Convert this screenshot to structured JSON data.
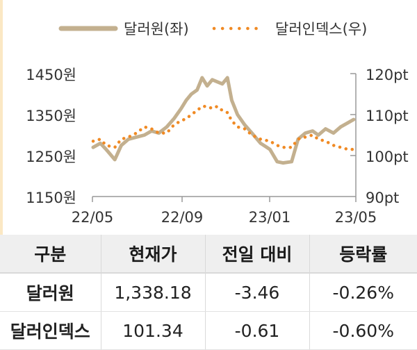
{
  "chart_data": {
    "type": "line",
    "x_ticks": [
      "22/05",
      "22/09",
      "23/01",
      "23/05"
    ],
    "y_left": {
      "ticks": [
        "1450원",
        "1350원",
        "1250원",
        "1150원"
      ],
      "lim": [
        1150,
        1450
      ]
    },
    "y_right": {
      "ticks": [
        "120pt",
        "110pt",
        "100pt",
        "90pt"
      ],
      "lim": [
        90,
        120
      ]
    },
    "grid": false,
    "legend_position": "top",
    "series": [
      {
        "name": "달러원(좌)",
        "axis": "left",
        "style": "solid",
        "color": "#c3b08f",
        "x": [
          "2022-05-02",
          "2022-05-12",
          "2022-05-20",
          "2022-06-01",
          "2022-06-10",
          "2022-06-20",
          "2022-07-01",
          "2022-07-12",
          "2022-07-22",
          "2022-08-01",
          "2022-08-12",
          "2022-08-22",
          "2022-09-01",
          "2022-09-08",
          "2022-09-15",
          "2022-09-23",
          "2022-09-30",
          "2022-10-07",
          "2022-10-14",
          "2022-10-21",
          "2022-10-28",
          "2022-11-04",
          "2022-11-10",
          "2022-11-18",
          "2022-11-28",
          "2022-12-08",
          "2022-12-20",
          "2023-01-02",
          "2023-01-12",
          "2023-01-20",
          "2023-02-01",
          "2023-02-10",
          "2023-02-20",
          "2023-03-02",
          "2023-03-10",
          "2023-03-20",
          "2023-03-31",
          "2023-04-10",
          "2023-04-20",
          "2023-04-28"
        ],
        "y": [
          1270,
          1280,
          1265,
          1240,
          1275,
          1290,
          1295,
          1300,
          1310,
          1305,
          1320,
          1340,
          1365,
          1385,
          1400,
          1410,
          1440,
          1420,
          1435,
          1430,
          1425,
          1440,
          1385,
          1350,
          1325,
          1305,
          1280,
          1265,
          1235,
          1232,
          1235,
          1290,
          1305,
          1310,
          1300,
          1315,
          1305,
          1320,
          1330,
          1338
        ]
      },
      {
        "name": "달러인덱스(우)",
        "axis": "right",
        "style": "dotted",
        "color": "#f08a24",
        "x": [
          "2022-05-02",
          "2022-05-12",
          "2022-05-20",
          "2022-06-01",
          "2022-06-10",
          "2022-06-20",
          "2022-07-01",
          "2022-07-12",
          "2022-07-22",
          "2022-08-01",
          "2022-08-12",
          "2022-08-22",
          "2022-09-01",
          "2022-09-08",
          "2022-09-15",
          "2022-09-23",
          "2022-09-30",
          "2022-10-07",
          "2022-10-14",
          "2022-10-21",
          "2022-10-28",
          "2022-11-04",
          "2022-11-10",
          "2022-11-18",
          "2022-11-28",
          "2022-12-08",
          "2022-12-20",
          "2023-01-02",
          "2023-01-12",
          "2023-01-20",
          "2023-02-01",
          "2023-02-10",
          "2023-02-20",
          "2023-03-02",
          "2023-03-10",
          "2023-03-20",
          "2023-03-31",
          "2023-04-10",
          "2023-04-20",
          "2023-04-28"
        ],
        "y": [
          103.5,
          104.0,
          102.5,
          102.0,
          104.0,
          104.5,
          105.5,
          107.0,
          106.5,
          105.5,
          105.5,
          107.5,
          108.5,
          109.0,
          110.0,
          111.0,
          112.0,
          112.0,
          111.5,
          112.0,
          111.0,
          110.5,
          108.5,
          107.0,
          106.5,
          105.0,
          104.0,
          103.5,
          102.5,
          102.0,
          102.0,
          104.0,
          104.5,
          105.0,
          104.0,
          103.5,
          102.5,
          102.0,
          101.5,
          101.5
        ]
      }
    ]
  },
  "table": {
    "headers": [
      "구분",
      "현재가",
      "전일 대비",
      "등락률"
    ],
    "rows": [
      [
        "달러원",
        "1,338.18",
        "-3.46",
        "-0.26%"
      ],
      [
        "달러인덱스",
        "101.34",
        "-0.61",
        "-0.60%"
      ]
    ]
  }
}
